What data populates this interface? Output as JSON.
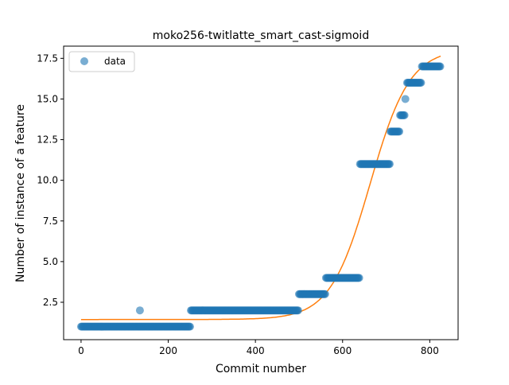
{
  "chart_data": {
    "type": "scatter",
    "title": "moko256-twitlatte_smart_cast-sigmoid",
    "xlabel": "Commit number",
    "ylabel": "Number of instance of a feature",
    "xlim": [
      -40,
      865
    ],
    "ylim": [
      0.2,
      18.25
    ],
    "xticks": [
      0,
      200,
      400,
      600,
      800
    ],
    "yticks": [
      2.5,
      5.0,
      7.5,
      10.0,
      12.5,
      15.0,
      17.5
    ],
    "xtick_labels": [
      "0",
      "200",
      "400",
      "600",
      "800"
    ],
    "ytick_labels": [
      "2.5",
      "5.0",
      "7.5",
      "10.0",
      "12.5",
      "15.0",
      "17.5"
    ],
    "legend": {
      "position": "top-left",
      "entries": [
        {
          "label": "data",
          "marker": "circle"
        }
      ]
    },
    "grid": false,
    "colors": {
      "data": "#1f77b4",
      "fit": "#ff7f0e"
    },
    "series": [
      {
        "name": "data",
        "kind": "points",
        "segments": [
          {
            "x_start": 0,
            "x_end": 250,
            "y": 1
          },
          {
            "x_start": 252,
            "x_end": 498,
            "y": 2
          },
          {
            "x_start": 500,
            "x_end": 560,
            "y": 3
          },
          {
            "x_start": 562,
            "x_end": 638,
            "y": 4
          },
          {
            "x_start": 640,
            "x_end": 708,
            "y": 11
          },
          {
            "x_start": 710,
            "x_end": 730,
            "y": 13
          },
          {
            "x_start": 732,
            "x_end": 742,
            "y": 14
          },
          {
            "x_start": 748,
            "x_end": 780,
            "y": 16
          },
          {
            "x_start": 782,
            "x_end": 825,
            "y": 17
          }
        ],
        "extra_points": [
          {
            "x": 135,
            "y": 2
          },
          {
            "x": 744,
            "y": 15
          }
        ]
      },
      {
        "name": "",
        "kind": "sigmoid-fit",
        "x_range": [
          0,
          825
        ],
        "params": {
          "lower": 1.44,
          "upper": 18.1,
          "midpoint": 663,
          "slope": 0.0219
        }
      }
    ]
  }
}
